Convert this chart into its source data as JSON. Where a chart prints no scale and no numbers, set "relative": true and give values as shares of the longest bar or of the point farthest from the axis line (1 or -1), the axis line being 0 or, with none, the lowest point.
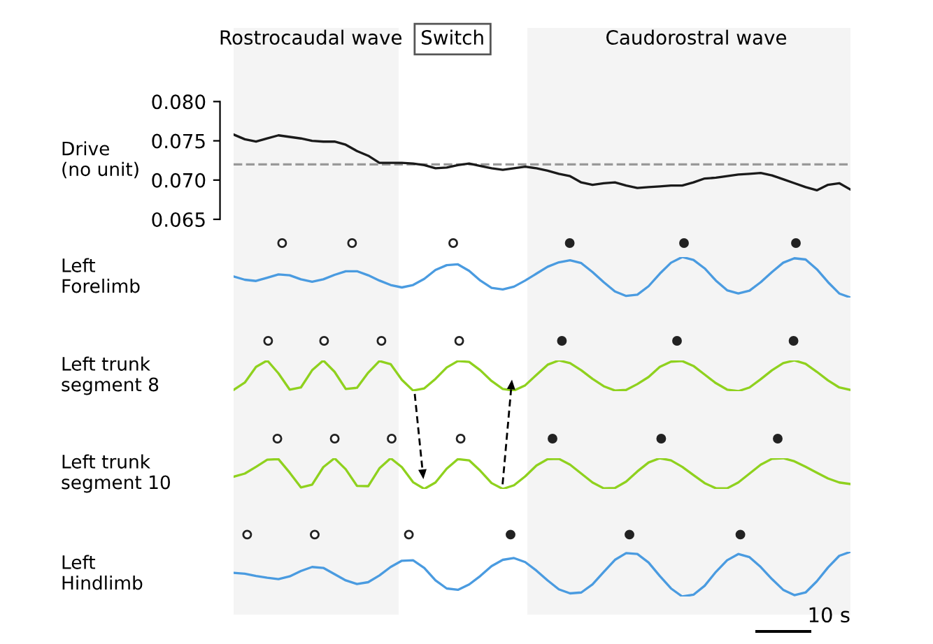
{
  "chart_data": [
    {
      "type": "line",
      "ylabel": "Drive\n(no unit)",
      "annotations": [
        "Rostrocaudal wave",
        "Switch",
        "Caudorostral wave"
      ],
      "categories": [
        null,
        null,
        null,
        null,
        null,
        null,
        null,
        null,
        null,
        null,
        null,
        null,
        null,
        null,
        null,
        null,
        null,
        null,
        null,
        null,
        null,
        null,
        null,
        null,
        null,
        null,
        null,
        null,
        null,
        null,
        null,
        null,
        null,
        null,
        null,
        null,
        null,
        null,
        null,
        null,
        null,
        null,
        null,
        null,
        null,
        null,
        null,
        null,
        null,
        null,
        null,
        null,
        null,
        null,
        null,
        null
      ],
      "ylim": [
        0.065,
        0.08
      ],
      "yticks": [
        {
          "value": 0.065,
          "label": "0.065"
        },
        {
          "value": 0.07,
          "label": "0.070"
        },
        {
          "value": 0.075,
          "label": "0.075"
        },
        {
          "value": 0.08,
          "label": "0.080"
        }
      ],
      "tick_labels": "y",
      "ref_lines": [
        {
          "axis": "y",
          "value": 0.072,
          "color": "#999999",
          "line_style": "dashed"
        }
      ],
      "series": [
        {
          "color": "#1a1a1a",
          "values": [
            0.0758,
            0.0752,
            0.0749,
            0.0753,
            0.0757,
            0.0755,
            0.0753,
            0.075,
            0.0749,
            0.0749,
            0.0745,
            0.0737,
            0.0731,
            0.0722,
            0.0722,
            0.0722,
            0.0721,
            0.0719,
            0.0715,
            0.0716,
            0.0719,
            0.0721,
            0.0718,
            0.0715,
            0.0713,
            0.0715,
            0.0717,
            0.0715,
            0.0712,
            0.0708,
            0.0705,
            0.0697,
            0.0694,
            0.0696,
            0.0697,
            0.0693,
            0.069,
            0.0691,
            0.0692,
            0.0693,
            0.0693,
            0.0697,
            0.0702,
            0.0703,
            0.0705,
            0.0707,
            0.0708,
            0.0709,
            0.0706,
            0.0701,
            0.0696,
            0.0691,
            0.0687,
            0.0694,
            0.0696,
            0.0688
          ]
        }
      ]
    },
    {
      "type": "line",
      "ylabel": "Left\nForelimb",
      "relative": true,
      "tick_labels": false,
      "categories": [
        null,
        null,
        null,
        null,
        null,
        null,
        null,
        null,
        null,
        null,
        null,
        null,
        null,
        null,
        null,
        null,
        null,
        null,
        null,
        null,
        null,
        null,
        null,
        null,
        null,
        null,
        null,
        null,
        null,
        null,
        null,
        null,
        null,
        null,
        null,
        null,
        null,
        null,
        null,
        null,
        null,
        null,
        null,
        null,
        null,
        null,
        null,
        null,
        null,
        null,
        null,
        null,
        null,
        null,
        null,
        null
      ],
      "series": [
        {
          "color": "#4a9be0",
          "values": [
            0.52,
            0.44,
            0.41,
            0.49,
            0.57,
            0.55,
            0.45,
            0.39,
            0.45,
            0.56,
            0.65,
            0.65,
            0.55,
            0.42,
            0.31,
            0.25,
            0.31,
            0.46,
            0.68,
            0.8,
            0.82,
            0.66,
            0.42,
            0.24,
            0.2,
            0.27,
            0.42,
            0.59,
            0.76,
            0.87,
            0.92,
            0.85,
            0.63,
            0.38,
            0.15,
            0.04,
            0.07,
            0.28,
            0.59,
            0.86,
            1,
            0.93,
            0.72,
            0.42,
            0.18,
            0.1,
            0.17,
            0.38,
            0.63,
            0.86,
            0.97,
            0.94,
            0.7,
            0.38,
            0.1,
            0
          ]
        }
      ]
    },
    {
      "type": "line",
      "ylabel": "Left trunk\nsegment 8",
      "relative": true,
      "tick_labels": false,
      "categories": [
        null,
        null,
        null,
        null,
        null,
        null,
        null,
        null,
        null,
        null,
        null,
        null,
        null,
        null,
        null,
        null,
        null,
        null,
        null,
        null,
        null,
        null,
        null,
        null,
        null,
        null,
        null,
        null,
        null,
        null,
        null,
        null,
        null,
        null,
        null,
        null,
        null,
        null,
        null,
        null,
        null,
        null,
        null,
        null,
        null,
        null,
        null,
        null,
        null,
        null,
        null,
        null,
        null,
        null,
        null,
        null
      ],
      "series": [
        {
          "color": "#8fd11e",
          "values": [
            0.04,
            0.28,
            0.79,
            1,
            0.58,
            0.05,
            0.12,
            0.68,
            1,
            0.63,
            0.07,
            0.11,
            0.6,
            0.98,
            0.88,
            0.37,
            0.02,
            0.09,
            0.4,
            0.77,
            0.98,
            0.95,
            0.68,
            0.33,
            0.07,
            0.02,
            0.19,
            0.53,
            0.86,
            1,
            0.91,
            0.68,
            0.4,
            0.16,
            0.02,
            0.04,
            0.23,
            0.46,
            0.79,
            0.96,
            0.98,
            0.82,
            0.54,
            0.26,
            0.05,
            0,
            0.12,
            0.39,
            0.68,
            0.91,
            1,
            0.89,
            0.63,
            0.35,
            0.12,
            0.04
          ]
        }
      ]
    },
    {
      "type": "line",
      "ylabel": "Left trunk\nsegment 10",
      "relative": true,
      "tick_labels": false,
      "categories": [
        null,
        null,
        null,
        null,
        null,
        null,
        null,
        null,
        null,
        null,
        null,
        null,
        null,
        null,
        null,
        null,
        null,
        null,
        null,
        null,
        null,
        null,
        null,
        null,
        null,
        null,
        null,
        null,
        null,
        null,
        null,
        null,
        null,
        null,
        null,
        null,
        null,
        null,
        null,
        null,
        null,
        null,
        null,
        null,
        null,
        null,
        null,
        null,
        null,
        null,
        null,
        null,
        null,
        null,
        null,
        null
      ],
      "series": [
        {
          "color": "#8fd11e",
          "values": [
            0.4,
            0.5,
            0.72,
            0.95,
            0.97,
            0.53,
            0.05,
            0.14,
            0.71,
            1,
            0.64,
            0.1,
            0.09,
            0.67,
            1,
            0.71,
            0.22,
            0,
            0.21,
            0.66,
            0.97,
            0.93,
            0.59,
            0.19,
            0,
            0.12,
            0.41,
            0.76,
            0.97,
            0.98,
            0.79,
            0.5,
            0.21,
            0.02,
            0.03,
            0.24,
            0.57,
            0.86,
            1,
            0.93,
            0.72,
            0.45,
            0.19,
            0.02,
            0.02,
            0.21,
            0.5,
            0.79,
            0.98,
            1,
            0.9,
            0.72,
            0.53,
            0.34,
            0.21,
            0.16
          ]
        }
      ]
    },
    {
      "type": "line",
      "ylabel": "Left\nHindlimb",
      "relative": true,
      "tick_labels": false,
      "annotations": [
        "10 s"
      ],
      "categories": [
        null,
        null,
        null,
        null,
        null,
        null,
        null,
        null,
        null,
        null,
        null,
        null,
        null,
        null,
        null,
        null,
        null,
        null,
        null,
        null,
        null,
        null,
        null,
        null,
        null,
        null,
        null,
        null,
        null,
        null,
        null,
        null,
        null,
        null,
        null,
        null,
        null,
        null,
        null,
        null,
        null,
        null,
        null,
        null,
        null,
        null,
        null,
        null,
        null,
        null,
        null,
        null,
        null,
        null,
        null,
        null
      ],
      "series": [
        {
          "color": "#4a9be0",
          "values": [
            0.53,
            0.51,
            0.46,
            0.42,
            0.39,
            0.45,
            0.57,
            0.66,
            0.64,
            0.5,
            0.36,
            0.28,
            0.32,
            0.47,
            0.66,
            0.8,
            0.81,
            0.64,
            0.36,
            0.18,
            0.15,
            0.27,
            0.46,
            0.68,
            0.82,
            0.86,
            0.77,
            0.58,
            0.36,
            0.16,
            0.07,
            0.09,
            0.27,
            0.55,
            0.82,
            0.97,
            0.95,
            0.76,
            0.46,
            0.18,
            0,
            0.04,
            0.24,
            0.55,
            0.81,
            0.95,
            0.88,
            0.66,
            0.39,
            0.15,
            0.03,
            0.09,
            0.34,
            0.65,
            0.91,
            1
          ]
        }
      ]
    }
  ]
}
